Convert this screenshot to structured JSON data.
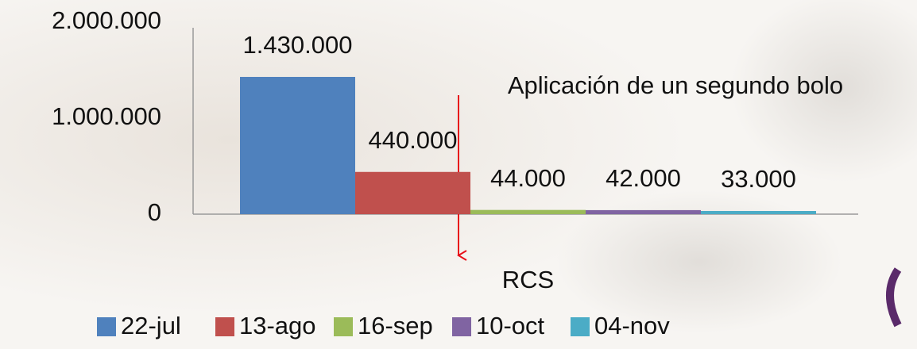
{
  "chart_data": {
    "type": "bar",
    "categories": [
      "RCS"
    ],
    "series": [
      {
        "name": "22-jul",
        "color": "#4f81bd",
        "values": [
          1430000
        ],
        "value_labels": [
          "1.430.000"
        ]
      },
      {
        "name": "13-ago",
        "color": "#c0504d",
        "values": [
          440000
        ],
        "value_labels": [
          "440.000"
        ]
      },
      {
        "name": "16-sep",
        "color": "#9bbb59",
        "values": [
          44000
        ],
        "value_labels": [
          "44.000"
        ]
      },
      {
        "name": "10-oct",
        "color": "#8064a2",
        "values": [
          42000
        ],
        "value_labels": [
          "42.000"
        ]
      },
      {
        "name": "04-nov",
        "color": "#4bacc6",
        "values": [
          33000
        ],
        "value_labels": [
          "33.000"
        ]
      }
    ],
    "ylim": [
      0,
      2000000
    ],
    "yticks": [
      0,
      {
        "value": 1000000,
        "label": "1.000.000"
      },
      {
        "value": 2000000,
        "label": "2.000.000"
      }
    ],
    "grid": false,
    "legend": "bottom",
    "annotation": "Aplicación de un segundo bolo"
  }
}
